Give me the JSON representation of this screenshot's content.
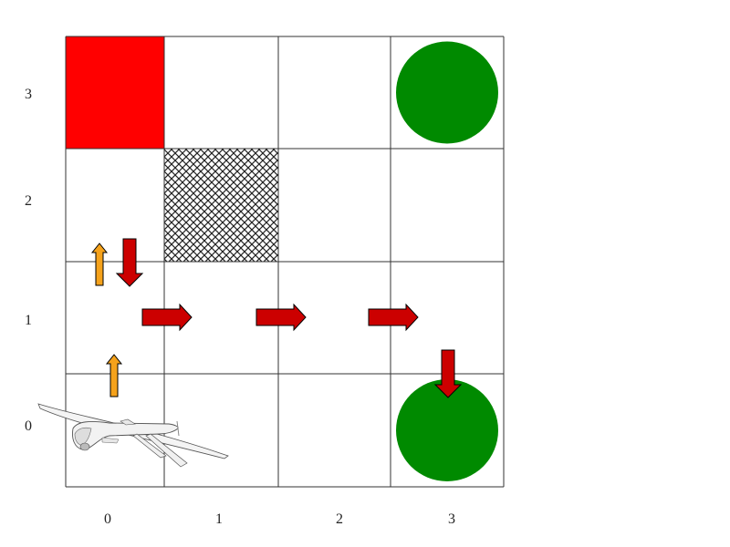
{
  "grid": {
    "cols": 4,
    "rows": 4,
    "x_ticks": [
      "0",
      "1",
      "2",
      "3"
    ],
    "y_ticks": [
      "0",
      "1",
      "2",
      "3"
    ]
  },
  "cells": {
    "start_red": {
      "col": 0,
      "row": 3,
      "color": "#ff0000"
    },
    "obstacle": {
      "col": 1,
      "row": 2,
      "pattern": "crosshatch"
    },
    "goals": [
      {
        "col": 3,
        "row": 3,
        "color": "#008a00"
      },
      {
        "col": 3,
        "row": 0,
        "color": "#008a00"
      }
    ]
  },
  "agent": {
    "icon": "drone-icon",
    "col": 0,
    "row": 0
  },
  "arrows": [
    {
      "kind": "orange",
      "dir": "up",
      "col": 0,
      "row": 0,
      "fx": 0.5,
      "fy": 0.0,
      "color": "#f5a21b"
    },
    {
      "kind": "orange",
      "dir": "up",
      "col": 0,
      "row": 1,
      "fx": 0.3,
      "fy": 0.8,
      "color": "#f5a21b"
    },
    {
      "kind": "red",
      "dir": "down",
      "col": 0,
      "row": 1,
      "fx": 0.65,
      "fy": 0.8,
      "color": "#cc0000"
    },
    {
      "kind": "red",
      "dir": "right",
      "col": 1,
      "row": 1,
      "fx": 0.0,
      "fy": 0.5,
      "color": "#cc0000"
    },
    {
      "kind": "red",
      "dir": "right",
      "col": 2,
      "row": 1,
      "fx": 0.0,
      "fy": 0.5,
      "color": "#cc0000"
    },
    {
      "kind": "red",
      "dir": "right",
      "col": 3,
      "row": 1,
      "fx": 0.0,
      "fy": 0.5,
      "color": "#cc0000"
    },
    {
      "kind": "red",
      "dir": "down",
      "col": 3,
      "row": 0,
      "fx": 0.5,
      "fy": 1.0,
      "color": "#cc0000"
    }
  ]
}
